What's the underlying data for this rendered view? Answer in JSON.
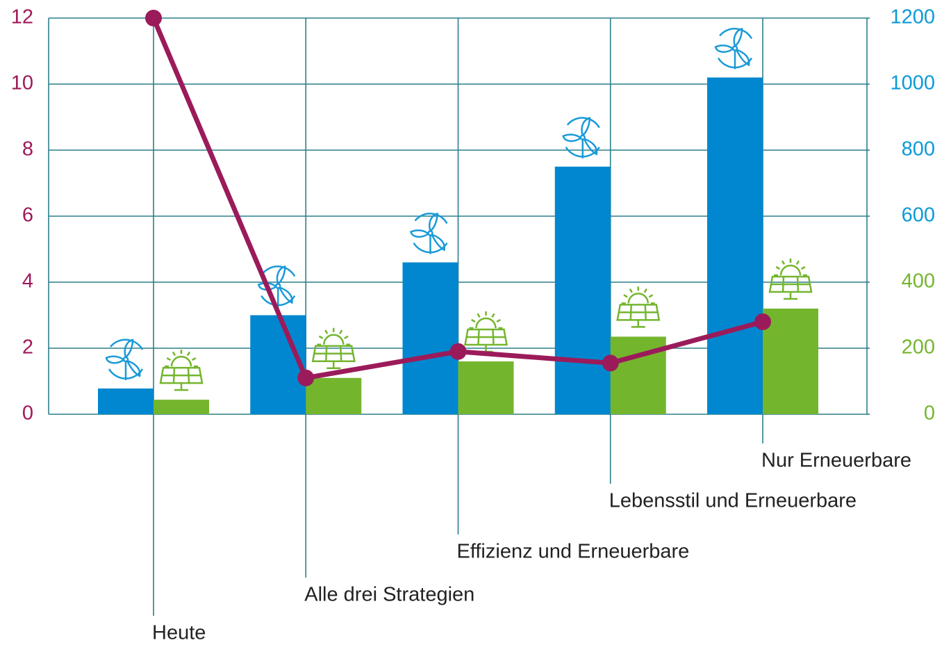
{
  "chart_data": {
    "type": "bar",
    "categories": [
      "Heute",
      "Alle drei Strategien",
      "Effizienz und Erneuerbare",
      "Lebensstil und Erneuerbare",
      "Nur Erneuerbare"
    ],
    "series": [
      {
        "color": "#0087cf",
        "axis": "y2",
        "values": [
          78,
          300,
          460,
          750,
          1020
        ]
      },
      {
        "color": "#74b52e",
        "axis": "y2",
        "values": [
          44,
          110,
          160,
          235,
          320
        ]
      },
      {
        "type": "line",
        "color": "#9b1b5a",
        "values": [
          12,
          1.1,
          1.9,
          1.55,
          2.8
        ]
      }
    ],
    "ylim": [
      0,
      12
    ],
    "yticks": [
      0,
      2,
      4,
      6,
      8,
      10,
      12
    ],
    "ytick_color": "#a0195a",
    "y2lim": [
      0,
      1200
    ],
    "y2ticks": [
      0,
      200,
      400,
      600,
      800,
      1000,
      1200
    ],
    "y2tick_colors": [
      "#74b52e",
      "#74b52e",
      "#74b52e",
      "#0a9ad8",
      "#0a9ad8",
      "#0a9ad8",
      "#0a9ad8"
    ],
    "grid": true
  }
}
